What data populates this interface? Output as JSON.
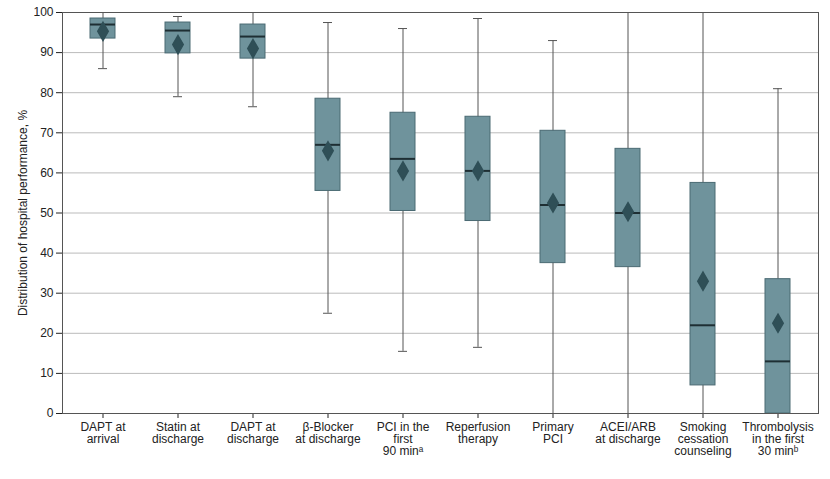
{
  "chart_data": {
    "type": "boxplot",
    "y_label": "Distribution of hospital performance, %",
    "categories": [
      "DAPT at\narrival",
      "Statin at\ndischarge",
      "DAPT at\ndischarge",
      "β-Blocker\nat discharge",
      "PCI in the\nfirst\n90 minᵃ",
      "Reperfusion\ntherapy",
      "Primary\nPCI",
      "ACEI/ARB\nat discharge",
      "Smoking\ncessation\ncounseling",
      "Thrombolysis\nin the first\n30 minᵇ"
    ],
    "min": [
      86,
      79,
      76.5,
      25,
      15.5,
      16.5,
      0,
      0,
      0,
      0
    ],
    "q1": [
      93.5,
      89.8,
      88.5,
      55.5,
      50.5,
      48,
      37.5,
      36.5,
      7,
      0
    ],
    "median": [
      97,
      95.5,
      94,
      67,
      63.5,
      60.5,
      52,
      50,
      22,
      13
    ],
    "q3": [
      98.5,
      97.5,
      97,
      78.5,
      75,
      74,
      70.5,
      66,
      57.5,
      33.5
    ],
    "max": [
      100,
      99,
      100,
      97.5,
      96,
      98.5,
      93,
      100,
      100,
      81
    ],
    "mean": [
      95.3,
      92,
      91,
      65.5,
      60.5,
      60.5,
      52.5,
      50.3,
      33,
      22.5
    ],
    "ylim": [
      0,
      100
    ],
    "yticks": [
      0,
      10,
      20,
      30,
      40,
      50,
      60,
      70,
      80,
      90,
      100
    ],
    "grid": true,
    "color": "#6f939c",
    "marker": "diamond"
  }
}
